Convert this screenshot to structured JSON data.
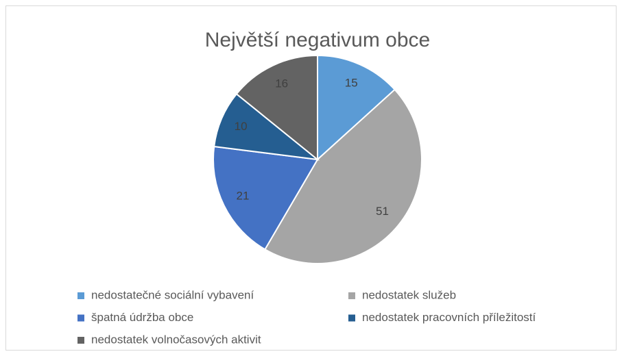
{
  "chart_data": {
    "type": "pie",
    "title": "Největší negativum obce",
    "categories": [
      "nedostatečné sociální vybavení",
      "nedostatek služeb",
      "špatná údržba obce",
      "nedostatek pracovních příležitostí",
      "nedostatek volnočasových aktivit"
    ],
    "values": [
      15,
      51,
      21,
      10,
      16
    ],
    "colors": [
      "#5b9bd5",
      "#a5a5a5",
      "#4472c4",
      "#255e91",
      "#636363"
    ],
    "legend": "bottom"
  }
}
